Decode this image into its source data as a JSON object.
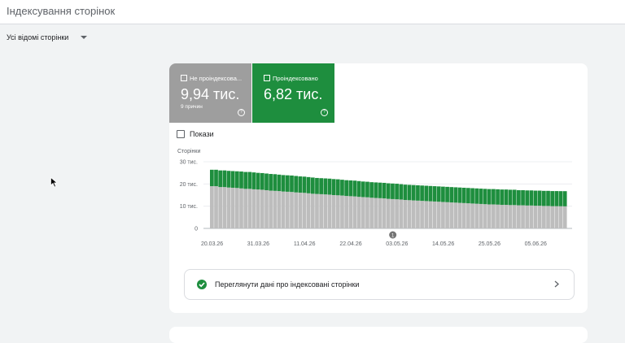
{
  "header": {
    "title": "Індексування сторінок"
  },
  "filter": {
    "label": "Усі відомі сторінки"
  },
  "cards": [
    {
      "label": "Не проіндексова...",
      "value": "9,94 тис.",
      "sub": "9 причин"
    },
    {
      "label": "Проіндексовано",
      "value": "6,82 тис."
    }
  ],
  "checkbox": {
    "label": "Покази"
  },
  "link": {
    "label": "Переглянути дані про індексовані сторінки"
  },
  "chart_data": {
    "type": "stacked-bar",
    "y_label": "Сторінки",
    "categories": [
      "20.03.26",
      null,
      null,
      null,
      null,
      null,
      null,
      null,
      null,
      null,
      null,
      "31.03.26",
      null,
      null,
      null,
      null,
      null,
      null,
      null,
      null,
      null,
      null,
      "11.04.26",
      null,
      null,
      null,
      null,
      null,
      null,
      null,
      null,
      null,
      null,
      "22.04.26",
      null,
      null,
      null,
      null,
      null,
      null,
      null,
      null,
      null,
      null,
      "03.05.26",
      null,
      null,
      null,
      null,
      null,
      null,
      null,
      null,
      null,
      null,
      "14.05.26",
      null,
      null,
      null,
      null,
      null,
      null,
      null,
      null,
      null,
      null,
      "25.05.26",
      null,
      null,
      null,
      null,
      null,
      null,
      null,
      null,
      null,
      null,
      "05.06.26",
      null,
      null,
      null,
      null,
      null,
      null,
      null
    ],
    "series": [
      {
        "color": "#bdbdbd",
        "values": [
          19.0,
          19.0,
          18.6,
          18.6,
          18.4,
          18.3,
          18.2,
          18.0,
          17.8,
          17.8,
          17.6,
          17.5,
          17.4,
          17.2,
          17.0,
          16.9,
          16.8,
          16.6,
          16.5,
          16.4,
          16.2,
          16.1,
          16.0,
          15.8,
          15.6,
          15.5,
          15.4,
          15.3,
          15.2,
          15.0,
          14.9,
          14.8,
          14.6,
          14.5,
          14.4,
          14.2,
          14.1,
          14.0,
          13.8,
          13.7,
          13.6,
          13.5,
          13.3,
          13.2,
          13.1,
          13.0,
          12.8,
          12.7,
          12.6,
          12.5,
          12.4,
          12.3,
          12.2,
          12.1,
          12.0,
          11.9,
          11.8,
          11.7,
          11.6,
          11.5,
          11.4,
          11.3,
          11.2,
          11.1,
          11.0,
          10.9,
          10.8,
          10.8,
          10.7,
          10.6,
          10.6,
          10.5,
          10.5,
          10.4,
          10.4,
          10.3,
          10.3,
          10.2,
          10.2,
          10.1,
          10.1,
          10.0,
          10.0,
          9.97,
          9.94
        ]
      },
      {
        "color": "#1e8e3e",
        "values": [
          7.4,
          7.4,
          7.5,
          7.5,
          7.5,
          7.5,
          7.5,
          7.6,
          7.6,
          7.6,
          7.6,
          7.5,
          7.5,
          7.5,
          7.5,
          7.5,
          7.4,
          7.4,
          7.4,
          7.4,
          7.4,
          7.3,
          7.3,
          7.3,
          7.3,
          7.2,
          7.2,
          7.2,
          7.2,
          7.2,
          7.2,
          7.1,
          7.1,
          7.1,
          7.1,
          7.1,
          7.0,
          7.0,
          7.0,
          7.0,
          7.0,
          7.0,
          7.0,
          7.0,
          7.0,
          6.9,
          6.9,
          6.9,
          6.9,
          6.9,
          6.9,
          6.9,
          6.9,
          6.9,
          6.9,
          6.9,
          6.9,
          6.9,
          6.9,
          6.9,
          6.9,
          6.9,
          6.9,
          6.9,
          6.9,
          6.9,
          6.9,
          6.9,
          6.9,
          6.9,
          6.9,
          6.9,
          6.9,
          6.8,
          6.8,
          6.8,
          6.8,
          6.8,
          6.8,
          6.8,
          6.8,
          6.8,
          6.8,
          6.8,
          6.82
        ]
      }
    ],
    "ylim": [
      0,
      30
    ],
    "yticks": [
      0,
      {
        "value": 10,
        "label": "10 тис."
      },
      {
        "value": 20,
        "label": "20 тис."
      },
      {
        "value": 30,
        "label": "30 тис."
      }
    ],
    "grid": true,
    "annotation": {
      "index": 43,
      "label": "1"
    }
  }
}
